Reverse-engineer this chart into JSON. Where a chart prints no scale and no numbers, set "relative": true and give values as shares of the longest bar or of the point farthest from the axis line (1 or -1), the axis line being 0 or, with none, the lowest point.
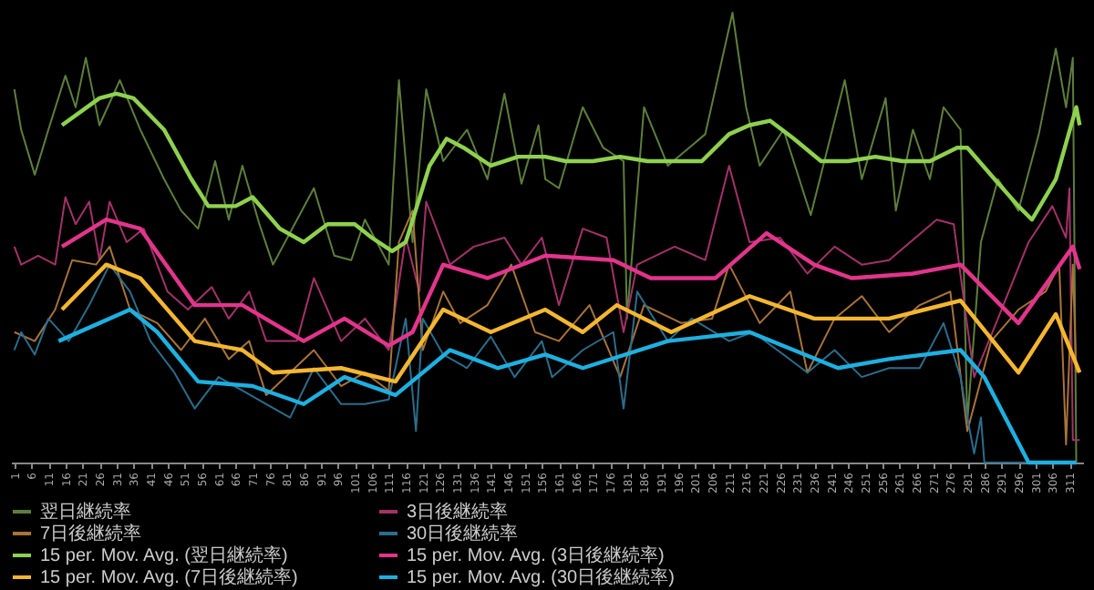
{
  "chart_data": {
    "type": "line",
    "relative": true,
    "legend": "bottom",
    "grid": false,
    "marker": "none",
    "line_style": "solid",
    "xlim": [
      0,
      315
    ],
    "xticks": [
      1,
      6,
      11,
      16,
      21,
      26,
      31,
      36,
      41,
      46,
      51,
      56,
      61,
      66,
      71,
      76,
      81,
      86,
      91,
      96,
      101,
      106,
      111,
      116,
      121,
      126,
      131,
      136,
      141,
      146,
      151,
      156,
      161,
      166,
      171,
      176,
      181,
      186,
      191,
      196,
      201,
      206,
      211,
      216,
      221,
      226,
      231,
      236,
      241,
      246,
      251,
      256,
      261,
      266,
      271,
      276,
      281,
      286,
      291,
      296,
      301,
      306,
      311
    ],
    "series": [
      {
        "name": "翌日継続率",
        "color": "#5e7f3c",
        "x": [
          1,
          3,
          7,
          11,
          16,
          19,
          22,
          26,
          32,
          38,
          45,
          50,
          55,
          60,
          64,
          68,
          73,
          77,
          89,
          95,
          100,
          104,
          111,
          114,
          118,
          122,
          127,
          134,
          140,
          145,
          150,
          155,
          157,
          161,
          168,
          174,
          180,
          181,
          186,
          193,
          204,
          212,
          216,
          220,
          227,
          235,
          245,
          250,
          257,
          260,
          265,
          270,
          274,
          279,
          281,
          285,
          290,
          296,
          302,
          307,
          310,
          312,
          313
        ],
        "values": [
          0.83,
          0.74,
          0.64,
          0.74,
          0.86,
          0.79,
          0.9,
          0.75,
          0.85,
          0.74,
          0.63,
          0.56,
          0.52,
          0.67,
          0.54,
          0.66,
          0.53,
          0.44,
          0.61,
          0.46,
          0.45,
          0.54,
          0.44,
          0.85,
          0.49,
          0.83,
          0.67,
          0.74,
          0.63,
          0.82,
          0.62,
          0.75,
          0.63,
          0.61,
          0.79,
          0.7,
          0.67,
          0.32,
          0.79,
          0.66,
          0.73,
          1.0,
          0.79,
          0.66,
          0.74,
          0.55,
          0.85,
          0.63,
          0.81,
          0.56,
          0.74,
          0.63,
          0.79,
          0.74,
          0.09,
          0.49,
          0.63,
          0.56,
          0.73,
          0.92,
          0.79,
          0.9,
          0
        ]
      },
      {
        "name": "3日後継続率",
        "color": "#a3326a",
        "x": [
          1,
          3,
          8,
          13,
          16,
          19,
          23,
          26,
          29,
          34,
          39,
          46,
          52,
          59,
          64,
          70,
          75,
          84,
          89,
          97,
          104,
          111,
          116,
          120,
          122,
          129,
          136,
          145,
          150,
          156,
          161,
          168,
          175,
          180,
          184,
          195,
          204,
          211,
          217,
          226,
          234,
          242,
          250,
          258,
          272,
          277,
          283,
          290,
          299,
          306,
          310,
          311,
          312,
          314
        ],
        "values": [
          0.48,
          0.44,
          0.46,
          0.44,
          0.59,
          0.53,
          0.58,
          0.45,
          0.58,
          0.49,
          0.52,
          0.38,
          0.34,
          0.39,
          0.32,
          0.38,
          0.27,
          0.27,
          0.41,
          0.27,
          0.32,
          0.25,
          0.5,
          0.38,
          0.58,
          0.44,
          0.48,
          0.5,
          0.44,
          0.5,
          0.35,
          0.52,
          0.5,
          0.29,
          0.44,
          0.48,
          0.45,
          0.66,
          0.49,
          0.5,
          0.42,
          0.48,
          0.44,
          0.45,
          0.54,
          0.53,
          0.19,
          0.32,
          0.49,
          0.57,
          0.5,
          0.61,
          0.05,
          0.05
        ]
      },
      {
        "name": "7日後継続率",
        "color": "#a8733a",
        "x": [
          1,
          7,
          13,
          18,
          25,
          29,
          35,
          43,
          50,
          57,
          64,
          70,
          75,
          82,
          89,
          97,
          104,
          111,
          114,
          118,
          121,
          127,
          132,
          140,
          147,
          154,
          161,
          170,
          179,
          186,
          197,
          206,
          211,
          220,
          229,
          234,
          242,
          250,
          258,
          267,
          276,
          281,
          288,
          296,
          304,
          308,
          310,
          312,
          313
        ],
        "values": [
          0.29,
          0.27,
          0.34,
          0.45,
          0.44,
          0.48,
          0.34,
          0.31,
          0.25,
          0.32,
          0.23,
          0.27,
          0.15,
          0.2,
          0.25,
          0.17,
          0.2,
          0.16,
          0.49,
          0.56,
          0.25,
          0.38,
          0.31,
          0.35,
          0.44,
          0.29,
          0.27,
          0.35,
          0.19,
          0.35,
          0.31,
          0.32,
          0.44,
          0.31,
          0.38,
          0.2,
          0.32,
          0.37,
          0.29,
          0.35,
          0.38,
          0.07,
          0.27,
          0.34,
          0.38,
          0.44,
          0.04,
          0.44,
          0.2
        ]
      },
      {
        "name": "30日後継続率",
        "color": "#2b6d8c",
        "x": [
          1,
          3,
          7,
          11,
          17,
          23,
          29,
          35,
          41,
          48,
          54,
          61,
          68,
          75,
          82,
          89,
          97,
          104,
          111,
          116,
          119,
          121,
          127,
          134,
          141,
          148,
          156,
          159,
          168,
          177,
          180,
          184,
          193,
          200,
          211,
          218,
          227,
          234,
          242,
          250,
          258,
          267,
          274,
          279,
          281,
          283,
          285,
          286,
          313
        ],
        "values": [
          0.25,
          0.29,
          0.24,
          0.32,
          0.27,
          0.35,
          0.44,
          0.38,
          0.27,
          0.2,
          0.12,
          0.19,
          0.16,
          0.13,
          0.1,
          0.21,
          0.13,
          0.13,
          0.14,
          0.32,
          0.07,
          0.32,
          0.24,
          0.21,
          0.28,
          0.19,
          0.27,
          0.19,
          0.25,
          0.29,
          0.12,
          0.38,
          0.27,
          0.32,
          0.27,
          0.29,
          0.24,
          0.2,
          0.25,
          0.19,
          0.21,
          0.21,
          0.31,
          0.19,
          0.1,
          0.02,
          0.1,
          0,
          0
        ]
      },
      {
        "name": "15 per. Mov. Avg. (翌日継続率)",
        "color": "#8fd14f",
        "x": [
          15,
          26,
          31,
          36,
          45,
          53,
          58,
          66,
          71,
          79,
          86,
          93,
          101,
          106,
          112,
          116,
          123,
          128,
          133,
          141,
          149,
          157,
          163,
          171,
          179,
          187,
          195,
          203,
          211,
          217,
          223,
          230,
          238,
          246,
          254,
          262,
          270,
          278,
          281,
          289,
          296,
          300,
          307,
          313,
          314
        ],
        "values": [
          0.75,
          0.81,
          0.82,
          0.81,
          0.74,
          0.63,
          0.57,
          0.57,
          0.59,
          0.52,
          0.49,
          0.53,
          0.53,
          0.5,
          0.47,
          0.49,
          0.66,
          0.72,
          0.7,
          0.66,
          0.68,
          0.68,
          0.67,
          0.67,
          0.68,
          0.67,
          0.67,
          0.67,
          0.73,
          0.75,
          0.76,
          0.72,
          0.67,
          0.67,
          0.68,
          0.67,
          0.67,
          0.7,
          0.7,
          0.63,
          0.57,
          0.54,
          0.63,
          0.79,
          0.75
        ]
      },
      {
        "name": "15 per. Mov. Avg. (3日後継続率)",
        "color": "#e2358c",
        "x": [
          15,
          28,
          38,
          54,
          68,
          86,
          98,
          111,
          118,
          127,
          140,
          157,
          177,
          188,
          207,
          222,
          236,
          247,
          265,
          279,
          296,
          312,
          314
        ],
        "values": [
          0.48,
          0.54,
          0.52,
          0.35,
          0.35,
          0.27,
          0.32,
          0.26,
          0.29,
          0.44,
          0.41,
          0.46,
          0.45,
          0.41,
          0.41,
          0.51,
          0.44,
          0.41,
          0.42,
          0.44,
          0.31,
          0.48,
          0.43
        ]
      },
      {
        "name": "15 per. Mov. Avg. (7日後継続率)",
        "color": "#f5b730",
        "x": [
          15,
          28,
          38,
          54,
          68,
          77,
          97,
          113,
          127,
          141,
          157,
          168,
          178,
          194,
          217,
          236,
          258,
          279,
          296,
          307,
          314
        ],
        "values": [
          0.34,
          0.44,
          0.41,
          0.27,
          0.25,
          0.2,
          0.21,
          0.18,
          0.34,
          0.29,
          0.34,
          0.29,
          0.35,
          0.29,
          0.37,
          0.32,
          0.32,
          0.36,
          0.2,
          0.33,
          0.2
        ]
      },
      {
        "name": "15 per. Mov. Avg. (30日後継続率)",
        "color": "#1eb0e0",
        "x": [
          14,
          35,
          43,
          55,
          71,
          86,
          98,
          113,
          129,
          143,
          157,
          168,
          193,
          217,
          243,
          258,
          279,
          286,
          299,
          313
        ],
        "values": [
          0.27,
          0.34,
          0.29,
          0.18,
          0.17,
          0.13,
          0.19,
          0.15,
          0.25,
          0.21,
          0.24,
          0.21,
          0.27,
          0.29,
          0.21,
          0.23,
          0.25,
          0.19,
          0,
          0
        ]
      }
    ]
  }
}
